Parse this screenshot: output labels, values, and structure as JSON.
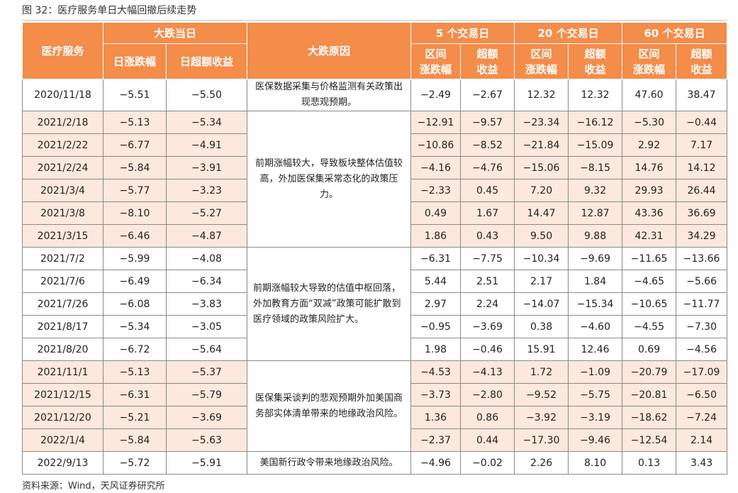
{
  "caption": "图 32：医疗服务单日大幅回撤后续走势",
  "footnote": "资料来源：Wind，天风证券研究所",
  "header": {
    "sector": "医疗服务",
    "big_drop_day": "大跌当日",
    "daily_change": "日涨跌幅",
    "daily_excess": "日超额收益",
    "reason": "大跌原因",
    "p5": "5 个交易日",
    "p20": "20 个交易日",
    "p60": "60 个交易日",
    "interval_l1": "区间",
    "interval_l2": "涨跌幅",
    "excess_l1": "超额",
    "excess_l2": "收益"
  },
  "reasons": [
    "医保数据采集与价格监测有关政策出现悲观预期。",
    "前期涨幅较大，导致板块整体估值较高，外加医保集采常态化的政策压力。",
    "前期涨幅较大导致的估值中枢回落，外加教育方面“双减”政策可能扩散到医疗领域的政策风险扩大。",
    "医保集采谈判的悲观预期外加美国商务部实体清单带来的地缘政治风险。",
    "美国新行政令带来地缘政治风险。"
  ],
  "rows": [
    [
      "2020/11/18",
      "−5.51",
      "−5.50",
      "−2.49",
      "−2.67",
      "12.32",
      "12.32",
      "47.60",
      "38.47"
    ],
    [
      "2021/2/18",
      "−5.13",
      "−5.34",
      "−12.91",
      "−9.57",
      "−23.34",
      "−16.12",
      "−5.30",
      "−0.44"
    ],
    [
      "2021/2/22",
      "−6.77",
      "−4.91",
      "−10.86",
      "−8.52",
      "−21.84",
      "−15.09",
      "2.92",
      "7.17"
    ],
    [
      "2021/2/24",
      "−5.84",
      "−3.91",
      "−4.16",
      "−4.76",
      "−15.06",
      "−8.15",
      "14.76",
      "14.12"
    ],
    [
      "2021/3/4",
      "−5.77",
      "−3.23",
      "−2.33",
      "0.45",
      "7.20",
      "9.32",
      "29.93",
      "26.44"
    ],
    [
      "2021/3/8",
      "−8.10",
      "−5.27",
      "0.49",
      "1.67",
      "14.47",
      "12.87",
      "43.36",
      "36.69"
    ],
    [
      "2021/3/15",
      "−6.46",
      "−4.87",
      "1.86",
      "0.43",
      "9.50",
      "9.88",
      "42.31",
      "34.29"
    ],
    [
      "2021/7/2",
      "−5.99",
      "−4.08",
      "−6.31",
      "−7.75",
      "−10.34",
      "−9.69",
      "−11.65",
      "−13.66"
    ],
    [
      "2021/7/6",
      "−6.49",
      "−6.34",
      "5.44",
      "2.51",
      "2.17",
      "1.84",
      "−4.65",
      "−5.66"
    ],
    [
      "2021/7/26",
      "−6.08",
      "−3.83",
      "2.97",
      "2.24",
      "−14.07",
      "−15.34",
      "−10.65",
      "−11.77"
    ],
    [
      "2021/8/17",
      "−5.34",
      "−3.05",
      "−0.95",
      "−3.69",
      "0.38",
      "−4.60",
      "−4.55",
      "−7.30"
    ],
    [
      "2021/8/20",
      "−6.72",
      "−5.64",
      "1.98",
      "−0.46",
      "15.91",
      "12.46",
      "0.69",
      "−4.56"
    ],
    [
      "2021/11/1",
      "−5.13",
      "−5.37",
      "−4.53",
      "−4.13",
      "1.72",
      "−1.09",
      "−20.79",
      "−17.09"
    ],
    [
      "2021/12/15",
      "−6.31",
      "−5.79",
      "−3.73",
      "−2.80",
      "−9.52",
      "−5.75",
      "−20.81",
      "−6.50"
    ],
    [
      "2021/12/20",
      "−5.21",
      "−3.69",
      "1.36",
      "0.86",
      "−3.92",
      "−3.19",
      "−18.62",
      "−7.24"
    ],
    [
      "2022/1/4",
      "−5.84",
      "−5.63",
      "−2.37",
      "0.44",
      "−17.30",
      "−9.46",
      "−12.54",
      "2.14"
    ],
    [
      "2022/9/13",
      "−5.72",
      "−5.91",
      "−4.96",
      "−0.02",
      "2.26",
      "8.10",
      "0.13",
      "3.43"
    ]
  ]
}
